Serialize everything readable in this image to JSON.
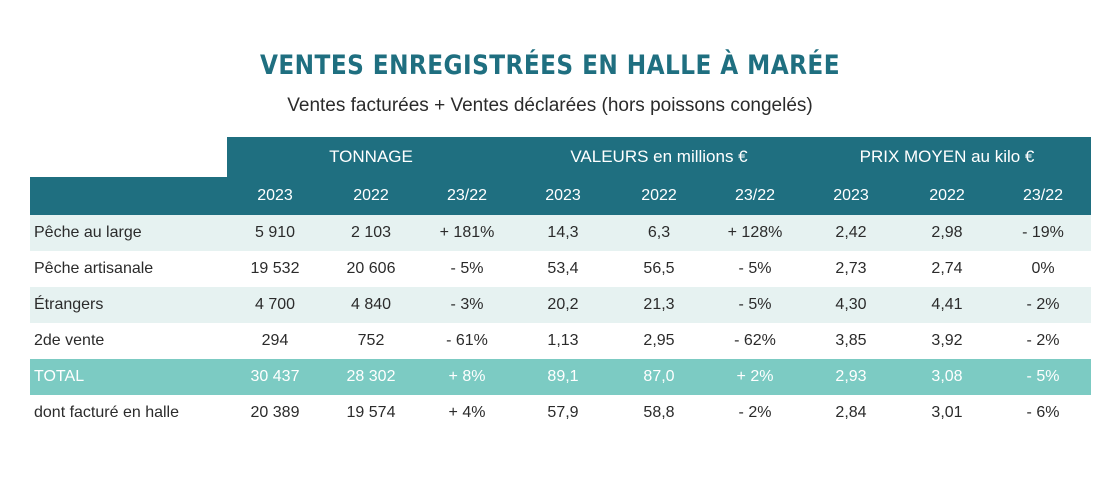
{
  "title": "VENTES ENREGISTRÉES EN HALLE À MARÉE",
  "subtitle": "Ventes facturées + Ventes déclarées (hors poissons congelés)",
  "groups": [
    "TONNAGE",
    "VALEURS en millions €",
    "PRIX MOYEN au kilo €"
  ],
  "subheaders": [
    "2023",
    "2022",
    "23/22",
    "2023",
    "2022",
    "23/22",
    "2023",
    "2022",
    "23/22"
  ],
  "rows": [
    {
      "label": "Pêche au large",
      "cells": [
        "5 910",
        "2 103",
        "+ 181%",
        "14,3",
        "6,3",
        "+ 128%",
        "2,42",
        "2,98",
        "- 19%"
      ]
    },
    {
      "label": "Pêche artisanale",
      "cells": [
        "19 532",
        "20 606",
        "- 5%",
        "53,4",
        "56,5",
        "- 5%",
        "2,73",
        "2,74",
        "0%"
      ]
    },
    {
      "label": "Étrangers",
      "cells": [
        "4 700",
        "4 840",
        "- 3%",
        "20,2",
        "21,3",
        "- 5%",
        "4,30",
        "4,41",
        "- 2%"
      ]
    },
    {
      "label": "2de vente",
      "cells": [
        "294",
        "752",
        "- 61%",
        "1,13",
        "2,95",
        "- 62%",
        "3,85",
        "3,92",
        "- 2%"
      ]
    },
    {
      "label": "TOTAL",
      "cells": [
        "30 437",
        "28 302",
        "+ 8%",
        "89,1",
        "87,0",
        "+ 2%",
        "2,93",
        "3,08",
        "- 5%"
      ]
    },
    {
      "label": "dont facturé en halle",
      "cells": [
        "20 389",
        "19 574",
        "+ 4%",
        "57,9",
        "58,8",
        "- 2%",
        "2,84",
        "3,01",
        "- 6%"
      ]
    }
  ],
  "colors": {
    "header": "#1f6f80",
    "band": "#e6f2f1",
    "total": "#7ccbc3",
    "title": "#1f6f80"
  }
}
